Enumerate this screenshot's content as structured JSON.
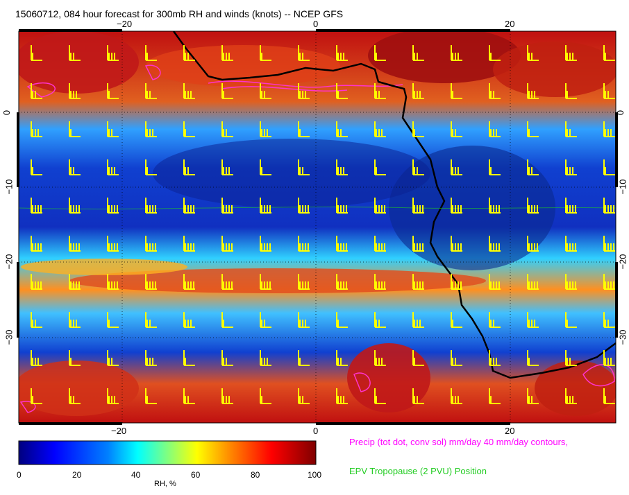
{
  "title": "15060712, 084 hour forecast for 300mb RH and winds (knots) -- NCEP GFS",
  "map": {
    "top_ticks": [
      "−20",
      "0",
      "20"
    ],
    "bottom_ticks": [
      "−20",
      "0",
      "20"
    ],
    "left_ticks": [
      "0",
      "−10",
      "−20",
      "−30"
    ],
    "right_ticks": [
      "0",
      "−10",
      "−20",
      "−30"
    ],
    "coastline_color": "#000000",
    "precip_contour_color": "#ff33cc",
    "wind_barb_color": "#ffff00"
  },
  "colorbar": {
    "ticks": [
      "0",
      "20",
      "40",
      "60",
      "80",
      "100"
    ],
    "label": "RH, %",
    "colors": [
      "#00007f",
      "#0000ff",
      "#0080ff",
      "#00ffff",
      "#80ff80",
      "#ffff00",
      "#ff8000",
      "#ff0000",
      "#7f0000"
    ]
  },
  "legend": {
    "precip": "Precip (tot dot, conv sol) mm/day 40 mm/day contours,",
    "epv": "EPV Tropopause (2 PVU) Position"
  }
}
